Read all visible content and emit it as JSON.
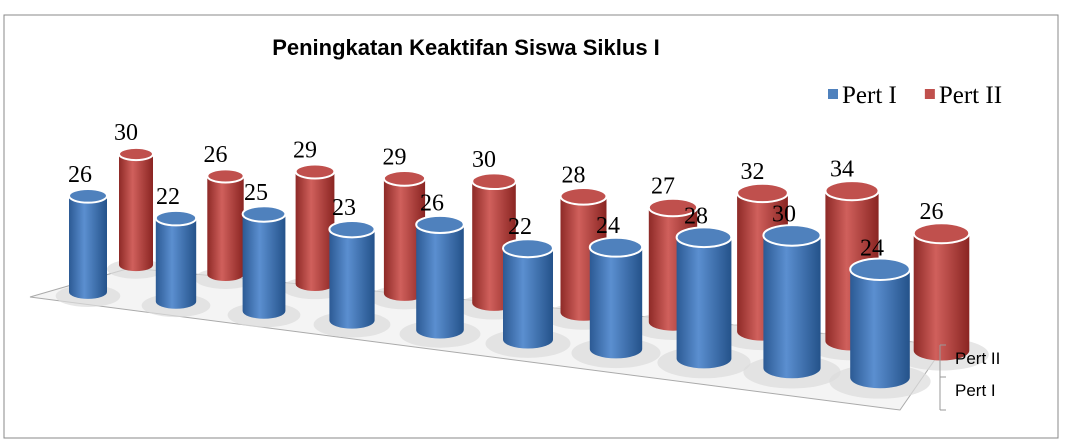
{
  "chart_data": {
    "type": "cylinder3d",
    "title": "Peningkatan Keaktifan Siswa Siklus I",
    "series": [
      {
        "name": "Pert I",
        "color": "#4f81bd",
        "values": [
          26,
          22,
          25,
          23,
          26,
          22,
          24,
          28,
          30,
          24
        ]
      },
      {
        "name": "Pert II",
        "color": "#c0504d",
        "values": [
          30,
          26,
          29,
          29,
          30,
          28,
          27,
          32,
          34,
          26
        ]
      }
    ],
    "depth_labels": [
      "Pert II",
      "Pert I"
    ],
    "legend": "top-right"
  }
}
